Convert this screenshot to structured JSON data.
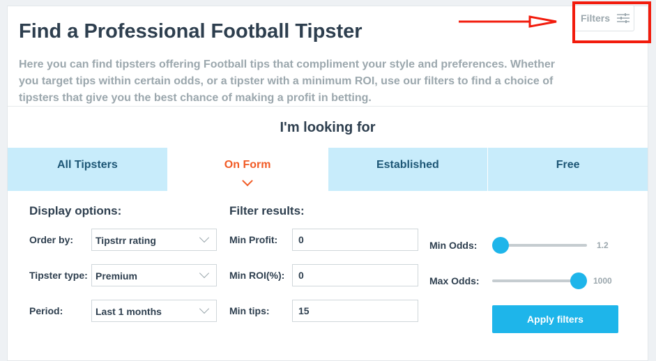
{
  "title": "Find a Professional Football Tipster",
  "description": "Here you can find tipsters offering Football tips that compliment your style and preferences. Whether you target tips within certain odds, or a tipster with a minimum ROI, use our filters to find a choice of tipsters that give you the best chance of making a profit in betting.",
  "filters_button": "Filters",
  "looking_for": "I'm looking for",
  "tabs": [
    {
      "label": "All Tipsters"
    },
    {
      "label": "On Form"
    },
    {
      "label": "Established"
    },
    {
      "label": "Free"
    }
  ],
  "active_tab": "On Form",
  "display": {
    "heading": "Display options:",
    "order_label": "Order by:",
    "order_value": "Tipstrr rating",
    "type_label": "Tipster type:",
    "type_value": "Premium",
    "period_label": "Period:",
    "period_value": "Last 1 months"
  },
  "filter": {
    "heading": "Filter results:",
    "profit_label": "Min Profit:",
    "profit_value": "0",
    "roi_label": "Min ROI(%):",
    "roi_value": "0",
    "tips_label": "Min tips:",
    "tips_value": "15"
  },
  "odds": {
    "min_label": "Min Odds:",
    "min_value": "1.2",
    "max_label": "Max Odds:",
    "max_value": "1000"
  },
  "apply_label": "Apply filters",
  "colors": {
    "accent": "#1eb5ea",
    "active_tab": "#f15a24",
    "tab_bg": "#c8ecfb",
    "highlight": "#f21b0c"
  }
}
